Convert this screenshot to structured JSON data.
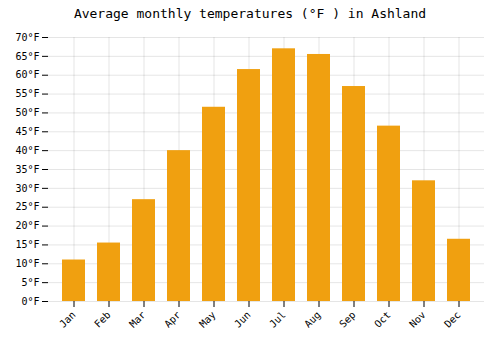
{
  "chart_data": {
    "type": "bar",
    "title": "Average monthly temperatures (°F ) in Ashland",
    "categories": [
      "Jan",
      "Feb",
      "Mar",
      "Apr",
      "May",
      "Jun",
      "Jul",
      "Aug",
      "Sep",
      "Oct",
      "Nov",
      "Dec"
    ],
    "values": [
      11,
      15.5,
      27,
      40,
      51.5,
      61.5,
      67,
      65.5,
      57,
      46.5,
      32,
      16.5
    ],
    "color": "#F0A010",
    "ylim": [
      0,
      70
    ],
    "yticks": [
      {
        "value": 0,
        "label": "0°F"
      },
      {
        "value": 5,
        "label": "5°F"
      },
      {
        "value": 10,
        "label": "10°F"
      },
      {
        "value": 15,
        "label": "15°F"
      },
      {
        "value": 20,
        "label": "20°F"
      },
      {
        "value": 25,
        "label": "25°F"
      },
      {
        "value": 30,
        "label": "30°F"
      },
      {
        "value": 35,
        "label": "35°F"
      },
      {
        "value": 40,
        "label": "40°F"
      },
      {
        "value": 45,
        "label": "45°F"
      },
      {
        "value": 50,
        "label": "50°F"
      },
      {
        "value": 55,
        "label": "55°F"
      },
      {
        "value": 60,
        "label": "60°F"
      },
      {
        "value": 65,
        "label": "65°F"
      },
      {
        "value": 70,
        "label": "70°F"
      }
    ],
    "grid": true
  }
}
